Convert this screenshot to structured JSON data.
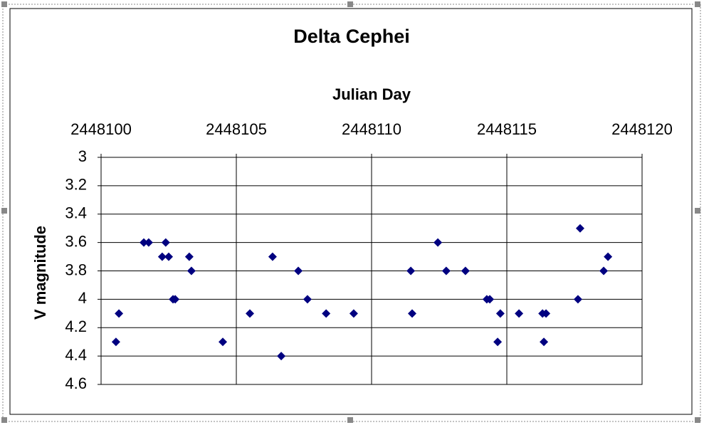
{
  "chart_data": {
    "type": "scatter",
    "title": "Delta Cephei",
    "xlabel": "Julian Day",
    "ylabel": "V magnitude",
    "x_axis_position": "top",
    "y_reversed": true,
    "grid": true,
    "marker": "diamond",
    "series": [
      {
        "color": "#000080",
        "x": [
          2448100.55,
          2448100.66,
          2448101.58,
          2448101.76,
          2448102.26,
          2448102.39,
          2448102.5,
          2448102.66,
          2448102.74,
          2448103.26,
          2448103.34,
          2448104.5,
          2448105.5,
          2448106.34,
          2448106.66,
          2448107.29,
          2448107.63,
          2448108.32,
          2448109.34,
          2448111.45,
          2448111.5,
          2448112.45,
          2448112.76,
          2448113.47,
          2448114.26,
          2448114.37,
          2448114.66,
          2448114.76,
          2448115.45,
          2448116.32,
          2448116.37,
          2448116.45,
          2448117.63,
          2448117.71,
          2448118.58,
          2448118.74
        ],
        "values": [
          4.3,
          4.1,
          3.6,
          3.6,
          3.7,
          3.6,
          3.7,
          4.0,
          4.0,
          3.7,
          3.8,
          4.3,
          4.1,
          3.7,
          4.4,
          3.8,
          4.0,
          4.1,
          4.1,
          3.8,
          4.1,
          3.6,
          3.8,
          3.8,
          4.0,
          4.0,
          4.3,
          4.1,
          4.1,
          4.1,
          4.3,
          4.1,
          4.0,
          3.5,
          3.8,
          3.7
        ]
      }
    ],
    "xlim": [
      2448100,
      2448120
    ],
    "xticks": [
      2448100,
      2448105,
      2448110,
      2448115,
      2448120
    ],
    "ylim": [
      3,
      4.6
    ],
    "yticks": [
      3,
      3.2,
      3.4,
      3.6,
      3.8,
      4,
      4.2,
      4.4,
      4.6
    ]
  }
}
